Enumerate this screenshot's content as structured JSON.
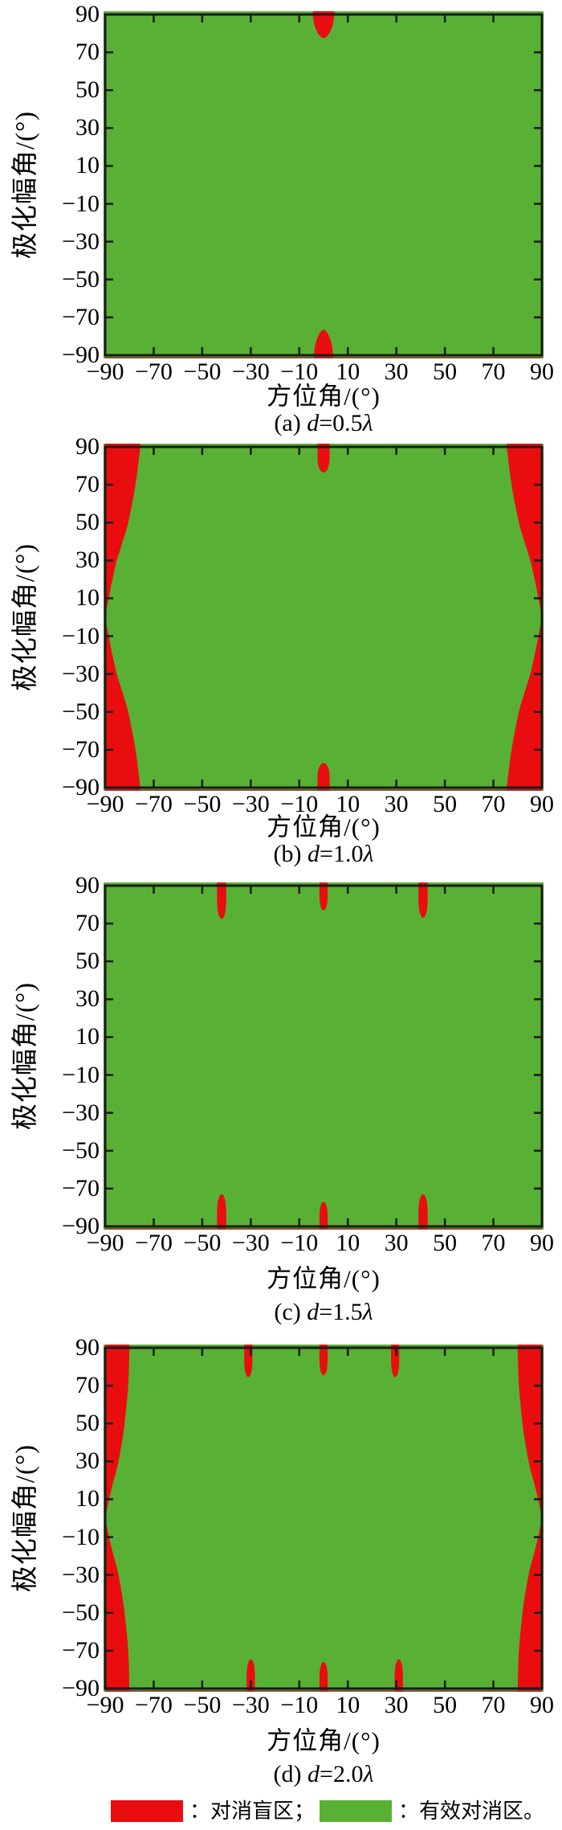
{
  "page": {
    "background": "#ffffff"
  },
  "colors": {
    "blind_red": "#e90d10",
    "effective_green": "#58b135",
    "frame": "#1b1b1b",
    "text": "#000000",
    "bottom_shadow": "#8a3a2a"
  },
  "axes": {
    "xlabel": "方位角/(°)",
    "ylabel": "极化幅角/(°)",
    "xticks": [
      -90,
      -70,
      -50,
      -30,
      -10,
      10,
      30,
      50,
      70,
      90
    ],
    "yticks": [
      90,
      70,
      50,
      30,
      10,
      -10,
      -30,
      -50,
      -70,
      -90
    ],
    "xlim": [
      -90,
      90
    ],
    "ylim": [
      -90,
      90
    ]
  },
  "legend": {
    "blind_label": "：对消盲区；",
    "effective_label": "：有效对消区。"
  },
  "chart_data": [
    {
      "id": "a",
      "type": "area",
      "title": "(a) d=0.5λ",
      "caption": {
        "p1": "(a) ",
        "d": "d",
        "p2": "=0.5",
        "l": "λ"
      },
      "xlim": [
        -90,
        90
      ],
      "ylim": [
        -90,
        90
      ],
      "regions": {
        "effective": "green: entire plane except blind zones",
        "blind_lobes": [
          {
            "edge": "top",
            "az_center": 0,
            "az_half_width": 4.4,
            "depth_deg": 12.5,
            "shape": "round"
          },
          {
            "edge": "bottom",
            "az_center": 0,
            "az_half_width": 3.9,
            "depth_deg": 13.5,
            "shape": "round"
          }
        ],
        "blind_edge_bands": []
      }
    },
    {
      "id": "b",
      "type": "area",
      "title": "(b) d=1.0λ",
      "caption": {
        "p1": "(b) ",
        "d": "d",
        "p2": "=1.0",
        "l": "λ"
      },
      "xlim": [
        -90,
        90
      ],
      "ylim": [
        -90,
        90
      ],
      "regions": {
        "effective": "green: entire plane except blind zones",
        "blind_lobes": [
          {
            "edge": "top",
            "az_center": 0,
            "az_half_width": 2.5,
            "depth_deg": 13.5,
            "shape": "finger"
          },
          {
            "edge": "bottom",
            "az_center": 0,
            "az_half_width": 2.5,
            "depth_deg": 13,
            "shape": "finger"
          }
        ],
        "blind_edge_bands": [
          {
            "side": "left",
            "width_profile": [
              [
                90,
                14.5
              ],
              [
                70,
                12.5
              ],
              [
                50,
                9.5
              ],
              [
                40,
                7.2
              ],
              [
                30,
                4.8
              ],
              [
                25,
                3.9
              ],
              [
                20,
                3
              ],
              [
                15,
                2.2
              ],
              [
                10,
                1.5
              ],
              [
                5,
                0.7
              ],
              [
                0,
                0
              ],
              [
                -5,
                0.7
              ],
              [
                -10,
                1.5
              ],
              [
                -15,
                2.2
              ],
              [
                -20,
                3
              ],
              [
                -25,
                3.9
              ],
              [
                -30,
                4.8
              ],
              [
                -40,
                7.2
              ],
              [
                -50,
                9.5
              ],
              [
                -70,
                12.5
              ],
              [
                -90,
                14.5
              ]
            ]
          },
          {
            "side": "right",
            "width_profile": [
              [
                90,
                14.5
              ],
              [
                70,
                12.5
              ],
              [
                50,
                9.5
              ],
              [
                40,
                7.2
              ],
              [
                30,
                4.8
              ],
              [
                25,
                3.9
              ],
              [
                20,
                3
              ],
              [
                15,
                2.2
              ],
              [
                10,
                1.5
              ],
              [
                5,
                0.7
              ],
              [
                0,
                0
              ],
              [
                -5,
                0.7
              ],
              [
                -10,
                1.5
              ],
              [
                -15,
                2.2
              ],
              [
                -20,
                3
              ],
              [
                -25,
                3.9
              ],
              [
                -30,
                4.8
              ],
              [
                -40,
                7.2
              ],
              [
                -50,
                9.5
              ],
              [
                -70,
                12.5
              ],
              [
                -90,
                14.5
              ]
            ]
          }
        ]
      }
    },
    {
      "id": "c",
      "type": "area",
      "title": "(c) d=1.5λ",
      "caption": {
        "p1": "(c) ",
        "d": "d",
        "p2": "=1.5",
        "l": "λ"
      },
      "xlim": [
        -90,
        90
      ],
      "ylim": [
        -90,
        90
      ],
      "regions": {
        "effective": "green: entire plane except blind zones",
        "blind_lobes": [
          {
            "edge": "top",
            "az_center": -42,
            "az_half_width": 1.9,
            "depth_deg": 17.5,
            "shape": "finger"
          },
          {
            "edge": "top",
            "az_center": 0,
            "az_half_width": 1.7,
            "depth_deg": 13,
            "shape": "finger"
          },
          {
            "edge": "top",
            "az_center": 41,
            "az_half_width": 1.9,
            "depth_deg": 17,
            "shape": "finger"
          },
          {
            "edge": "bottom",
            "az_center": -42,
            "az_half_width": 1.9,
            "depth_deg": 17,
            "shape": "finger"
          },
          {
            "edge": "bottom",
            "az_center": 0,
            "az_half_width": 1.7,
            "depth_deg": 13,
            "shape": "finger"
          },
          {
            "edge": "bottom",
            "az_center": 41,
            "az_half_width": 1.9,
            "depth_deg": 17,
            "shape": "finger"
          }
        ],
        "blind_edge_bands": []
      }
    },
    {
      "id": "d",
      "type": "area",
      "title": "(d) d=2.0λ",
      "caption": {
        "p1": "(d) ",
        "d": "d",
        "p2": "=2.0",
        "l": "λ"
      },
      "xlim": [
        -90,
        90
      ],
      "ylim": [
        -90,
        90
      ],
      "regions": {
        "effective": "green: entire plane except blind zones",
        "blind_lobes": [
          {
            "edge": "top",
            "az_center": -31,
            "az_half_width": 1.7,
            "depth_deg": 15.5,
            "shape": "finger"
          },
          {
            "edge": "top",
            "az_center": 0,
            "az_half_width": 1.7,
            "depth_deg": 14.5,
            "shape": "finger"
          },
          {
            "edge": "top",
            "az_center": 29.5,
            "az_half_width": 1.7,
            "depth_deg": 15.5,
            "shape": "finger"
          },
          {
            "edge": "bottom",
            "az_center": -30,
            "az_half_width": 1.7,
            "depth_deg": 15.5,
            "shape": "finger"
          },
          {
            "edge": "bottom",
            "az_center": 0,
            "az_half_width": 1.7,
            "depth_deg": 14,
            "shape": "finger"
          },
          {
            "edge": "bottom",
            "az_center": 31,
            "az_half_width": 1.7,
            "depth_deg": 15.5,
            "shape": "finger"
          }
        ],
        "blind_edge_bands": [
          {
            "side": "left",
            "width_profile": [
              [
                90,
                10
              ],
              [
                70,
                9.5
              ],
              [
                50,
                8
              ],
              [
                40,
                6.9
              ],
              [
                30,
                5.5
              ],
              [
                25,
                4.6
              ],
              [
                20,
                3.5
              ],
              [
                15,
                2.5
              ],
              [
                10,
                1.6
              ],
              [
                5,
                0.8
              ],
              [
                0,
                0
              ],
              [
                -5,
                0.8
              ],
              [
                -10,
                1.6
              ],
              [
                -15,
                2.5
              ],
              [
                -20,
                3.5
              ],
              [
                -25,
                4.6
              ],
              [
                -30,
                5.5
              ],
              [
                -40,
                6.9
              ],
              [
                -50,
                8
              ],
              [
                -70,
                9.5
              ],
              [
                -90,
                10
              ]
            ]
          },
          {
            "side": "right",
            "width_profile": [
              [
                90,
                10
              ],
              [
                70,
                9.5
              ],
              [
                50,
                8
              ],
              [
                40,
                6.9
              ],
              [
                30,
                5.5
              ],
              [
                25,
                4.6
              ],
              [
                20,
                3.5
              ],
              [
                15,
                2.5
              ],
              [
                10,
                1.6
              ],
              [
                5,
                0.8
              ],
              [
                0,
                0
              ],
              [
                -5,
                0.8
              ],
              [
                -10,
                1.6
              ],
              [
                -15,
                2.5
              ],
              [
                -20,
                3.5
              ],
              [
                -25,
                4.6
              ],
              [
                -30,
                5.5
              ],
              [
                -40,
                6.9
              ],
              [
                -50,
                8
              ],
              [
                -70,
                9.5
              ],
              [
                -90,
                10
              ]
            ]
          }
        ]
      }
    }
  ]
}
